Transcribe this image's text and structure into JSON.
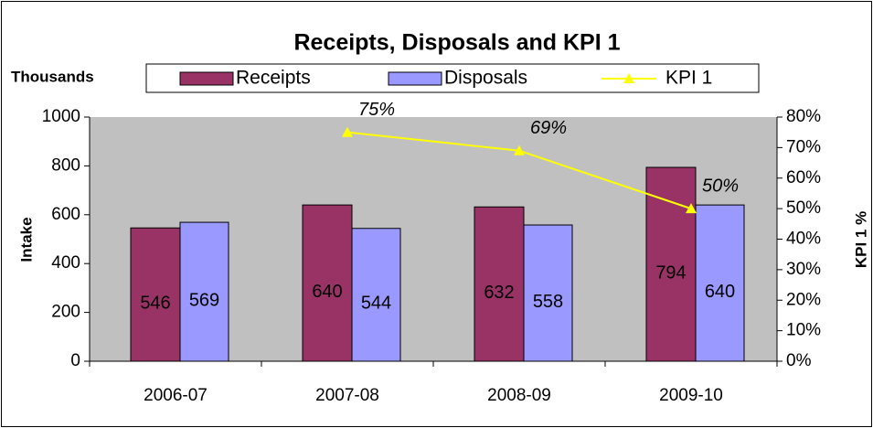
{
  "chart_data": {
    "type": "bar_line",
    "title": "Receipts, Disposals and KPI 1",
    "y_unit": "Thousands",
    "y_label": "Intake",
    "y2_label": "KPI 1 %",
    "categories": [
      "2006-07",
      "2007-08",
      "2008-09",
      "2009-10"
    ],
    "series": [
      {
        "name": "Receipts",
        "type": "bar",
        "color": "#993366",
        "values": [
          546,
          640,
          632,
          794
        ]
      },
      {
        "name": "Disposals",
        "type": "bar",
        "color": "#9999ff",
        "values": [
          569,
          544,
          558,
          640
        ]
      },
      {
        "name": "KPI 1",
        "type": "line",
        "axis": "y2",
        "color": "#ffff00",
        "values": [
          null,
          75,
          69,
          50
        ],
        "value_labels": [
          null,
          "75%",
          "69%",
          "50%"
        ]
      }
    ],
    "ylim": [
      0,
      1000
    ],
    "yticks": [
      0,
      200,
      400,
      600,
      800,
      1000
    ],
    "y2lim": [
      0,
      80
    ],
    "y2ticks": [
      {
        "value": 0,
        "label": "0%"
      },
      {
        "value": 10,
        "label": "10%"
      },
      {
        "value": 20,
        "label": "20%"
      },
      {
        "value": 30,
        "label": "30%"
      },
      {
        "value": 40,
        "label": "40%"
      },
      {
        "value": 50,
        "label": "50%"
      },
      {
        "value": 60,
        "label": "60%"
      },
      {
        "value": 70,
        "label": "70%"
      },
      {
        "value": 80,
        "label": "80%"
      }
    ],
    "grid": false,
    "plot_background": "#c0c0c0"
  }
}
